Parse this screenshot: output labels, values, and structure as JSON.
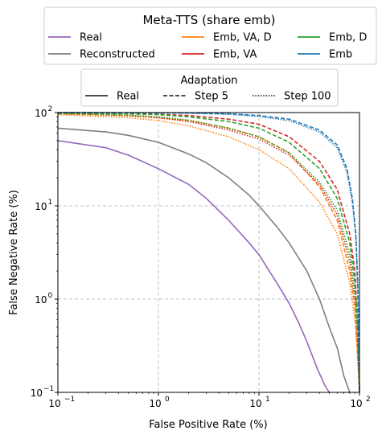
{
  "chart_data": {
    "type": "line",
    "xscale": "log",
    "yscale": "log",
    "xlim": [
      0.1,
      100
    ],
    "ylim": [
      0.1,
      100
    ],
    "xlabel": "False Positive Rate (%)",
    "ylabel": "False Negative Rate (%)",
    "xticks": [
      0.1,
      1,
      10,
      100
    ],
    "yticks": [
      0.1,
      1,
      10,
      100
    ],
    "grid": true,
    "legend_title": "Meta-TTS (share emb)",
    "legend_placement": "top, above plot",
    "legend2_title": "Adaptation",
    "linestyles": [
      {
        "name": "Real",
        "dash": "solid"
      },
      {
        "name": "Step 5",
        "dash": "dashed"
      },
      {
        "name": "Step 100",
        "dash": "dotted"
      }
    ],
    "series": [
      {
        "name": "Real",
        "color": "#9467bd",
        "dash": "solid",
        "points": [
          [
            0.1,
            50
          ],
          [
            0.3,
            42
          ],
          [
            0.5,
            35
          ],
          [
            1,
            25
          ],
          [
            2,
            17
          ],
          [
            3,
            12
          ],
          [
            5,
            7
          ],
          [
            8,
            4
          ],
          [
            10,
            3
          ],
          [
            15,
            1.5
          ],
          [
            20,
            0.9
          ],
          [
            25,
            0.55
          ],
          [
            30,
            0.35
          ],
          [
            38,
            0.18
          ],
          [
            45,
            0.12
          ],
          [
            50,
            0.1
          ]
        ]
      },
      {
        "name": "Reconstructed",
        "color": "#7f7f7f",
        "dash": "solid",
        "points": [
          [
            0.1,
            68
          ],
          [
            0.3,
            62
          ],
          [
            0.5,
            57
          ],
          [
            1,
            48
          ],
          [
            2,
            36
          ],
          [
            3,
            29
          ],
          [
            5,
            20
          ],
          [
            8,
            13
          ],
          [
            10,
            10
          ],
          [
            15,
            6
          ],
          [
            20,
            4
          ],
          [
            30,
            2
          ],
          [
            40,
            1
          ],
          [
            50,
            0.5
          ],
          [
            60,
            0.3
          ],
          [
            70,
            0.15
          ],
          [
            80,
            0.1
          ]
        ]
      },
      {
        "name": "Emb, VA, D",
        "color": "#ff7f0e",
        "dash": "dashed",
        "points": [
          [
            0.1,
            97
          ],
          [
            0.5,
            93
          ],
          [
            1,
            88
          ],
          [
            2,
            82
          ],
          [
            5,
            68
          ],
          [
            10,
            55
          ],
          [
            20,
            37
          ],
          [
            40,
            16
          ],
          [
            60,
            7
          ],
          [
            80,
            2
          ],
          [
            90,
            0.8
          ],
          [
            97,
            0.2
          ],
          [
            100,
            0.1
          ]
        ]
      },
      {
        "name": "Emb, VA, D",
        "color": "#ff7f0e",
        "dash": "dotted",
        "points": [
          [
            0.1,
            95
          ],
          [
            0.5,
            88
          ],
          [
            1,
            82
          ],
          [
            2,
            72
          ],
          [
            5,
            55
          ],
          [
            10,
            40
          ],
          [
            20,
            25
          ],
          [
            40,
            11
          ],
          [
            60,
            5
          ],
          [
            80,
            1.5
          ],
          [
            92,
            0.5
          ],
          [
            98,
            0.15
          ],
          [
            100,
            0.1
          ]
        ]
      },
      {
        "name": "Emb, VA",
        "color": "#d62728",
        "dash": "dashed",
        "points": [
          [
            0.1,
            99
          ],
          [
            0.5,
            98
          ],
          [
            1,
            96
          ],
          [
            2,
            93
          ],
          [
            5,
            85
          ],
          [
            10,
            75
          ],
          [
            20,
            55
          ],
          [
            40,
            30
          ],
          [
            60,
            15
          ],
          [
            80,
            5
          ],
          [
            90,
            2
          ],
          [
            96,
            0.5
          ],
          [
            100,
            0.1
          ]
        ]
      },
      {
        "name": "Emb, VA",
        "color": "#d62728",
        "dash": "dotted",
        "points": [
          [
            0.1,
            98
          ],
          [
            0.5,
            93
          ],
          [
            1,
            88
          ],
          [
            2,
            80
          ],
          [
            5,
            65
          ],
          [
            10,
            52
          ],
          [
            20,
            35
          ],
          [
            40,
            17
          ],
          [
            60,
            8
          ],
          [
            80,
            2.5
          ],
          [
            92,
            0.8
          ],
          [
            98,
            0.2
          ],
          [
            100,
            0.1
          ]
        ]
      },
      {
        "name": "Emb, D",
        "color": "#2ca02c",
        "dash": "dashed",
        "points": [
          [
            0.1,
            99
          ],
          [
            0.5,
            97
          ],
          [
            1,
            95
          ],
          [
            2,
            90
          ],
          [
            5,
            80
          ],
          [
            10,
            68
          ],
          [
            20,
            48
          ],
          [
            40,
            25
          ],
          [
            60,
            12
          ],
          [
            80,
            4
          ],
          [
            90,
            1.5
          ],
          [
            97,
            0.4
          ],
          [
            100,
            0.1
          ]
        ]
      },
      {
        "name": "Emb, D",
        "color": "#2ca02c",
        "dash": "dotted",
        "points": [
          [
            0.1,
            98
          ],
          [
            0.5,
            94
          ],
          [
            1,
            90
          ],
          [
            2,
            83
          ],
          [
            5,
            68
          ],
          [
            10,
            55
          ],
          [
            20,
            37
          ],
          [
            40,
            18
          ],
          [
            60,
            9
          ],
          [
            80,
            3
          ],
          [
            92,
            1
          ],
          [
            98,
            0.25
          ],
          [
            100,
            0.1
          ]
        ]
      },
      {
        "name": "Emb",
        "color": "#1f77b4",
        "dash": "dashed",
        "points": [
          [
            0.1,
            100
          ],
          [
            1,
            99.5
          ],
          [
            2,
            99
          ],
          [
            5,
            97
          ],
          [
            10,
            93
          ],
          [
            20,
            85
          ],
          [
            40,
            65
          ],
          [
            60,
            45
          ],
          [
            75,
            25
          ],
          [
            85,
            12
          ],
          [
            92,
            5
          ],
          [
            96,
            1.5
          ],
          [
            98,
            0.5
          ],
          [
            100,
            0.1
          ]
        ]
      },
      {
        "name": "Emb",
        "color": "#1f77b4",
        "dash": "dotted",
        "points": [
          [
            0.1,
            100
          ],
          [
            1,
            99.3
          ],
          [
            2,
            98.5
          ],
          [
            5,
            96
          ],
          [
            10,
            91
          ],
          [
            20,
            82
          ],
          [
            40,
            62
          ],
          [
            60,
            42
          ],
          [
            75,
            23
          ],
          [
            85,
            11
          ],
          [
            92,
            4.5
          ],
          [
            96,
            1.3
          ],
          [
            98,
            0.45
          ],
          [
            100,
            0.1
          ]
        ]
      }
    ],
    "legend_entries": [
      {
        "label": "Real",
        "color": "#9467bd"
      },
      {
        "label": "Reconstructed",
        "color": "#7f7f7f"
      },
      {
        "label": "Emb, VA, D",
        "color": "#ff7f0e"
      },
      {
        "label": "Emb, VA",
        "color": "#d62728"
      },
      {
        "label": "Emb, D",
        "color": "#2ca02c"
      },
      {
        "label": "Emb",
        "color": "#1f77b4"
      }
    ],
    "tick_labels": {
      "x": [
        "10",
        "10",
        "10",
        "10"
      ],
      "x_exp": [
        "−1",
        "0",
        "1",
        "2"
      ],
      "y": [
        "10",
        "10",
        "10",
        "10"
      ],
      "y_exp": [
        "−1",
        "0",
        "1",
        "2"
      ]
    }
  }
}
